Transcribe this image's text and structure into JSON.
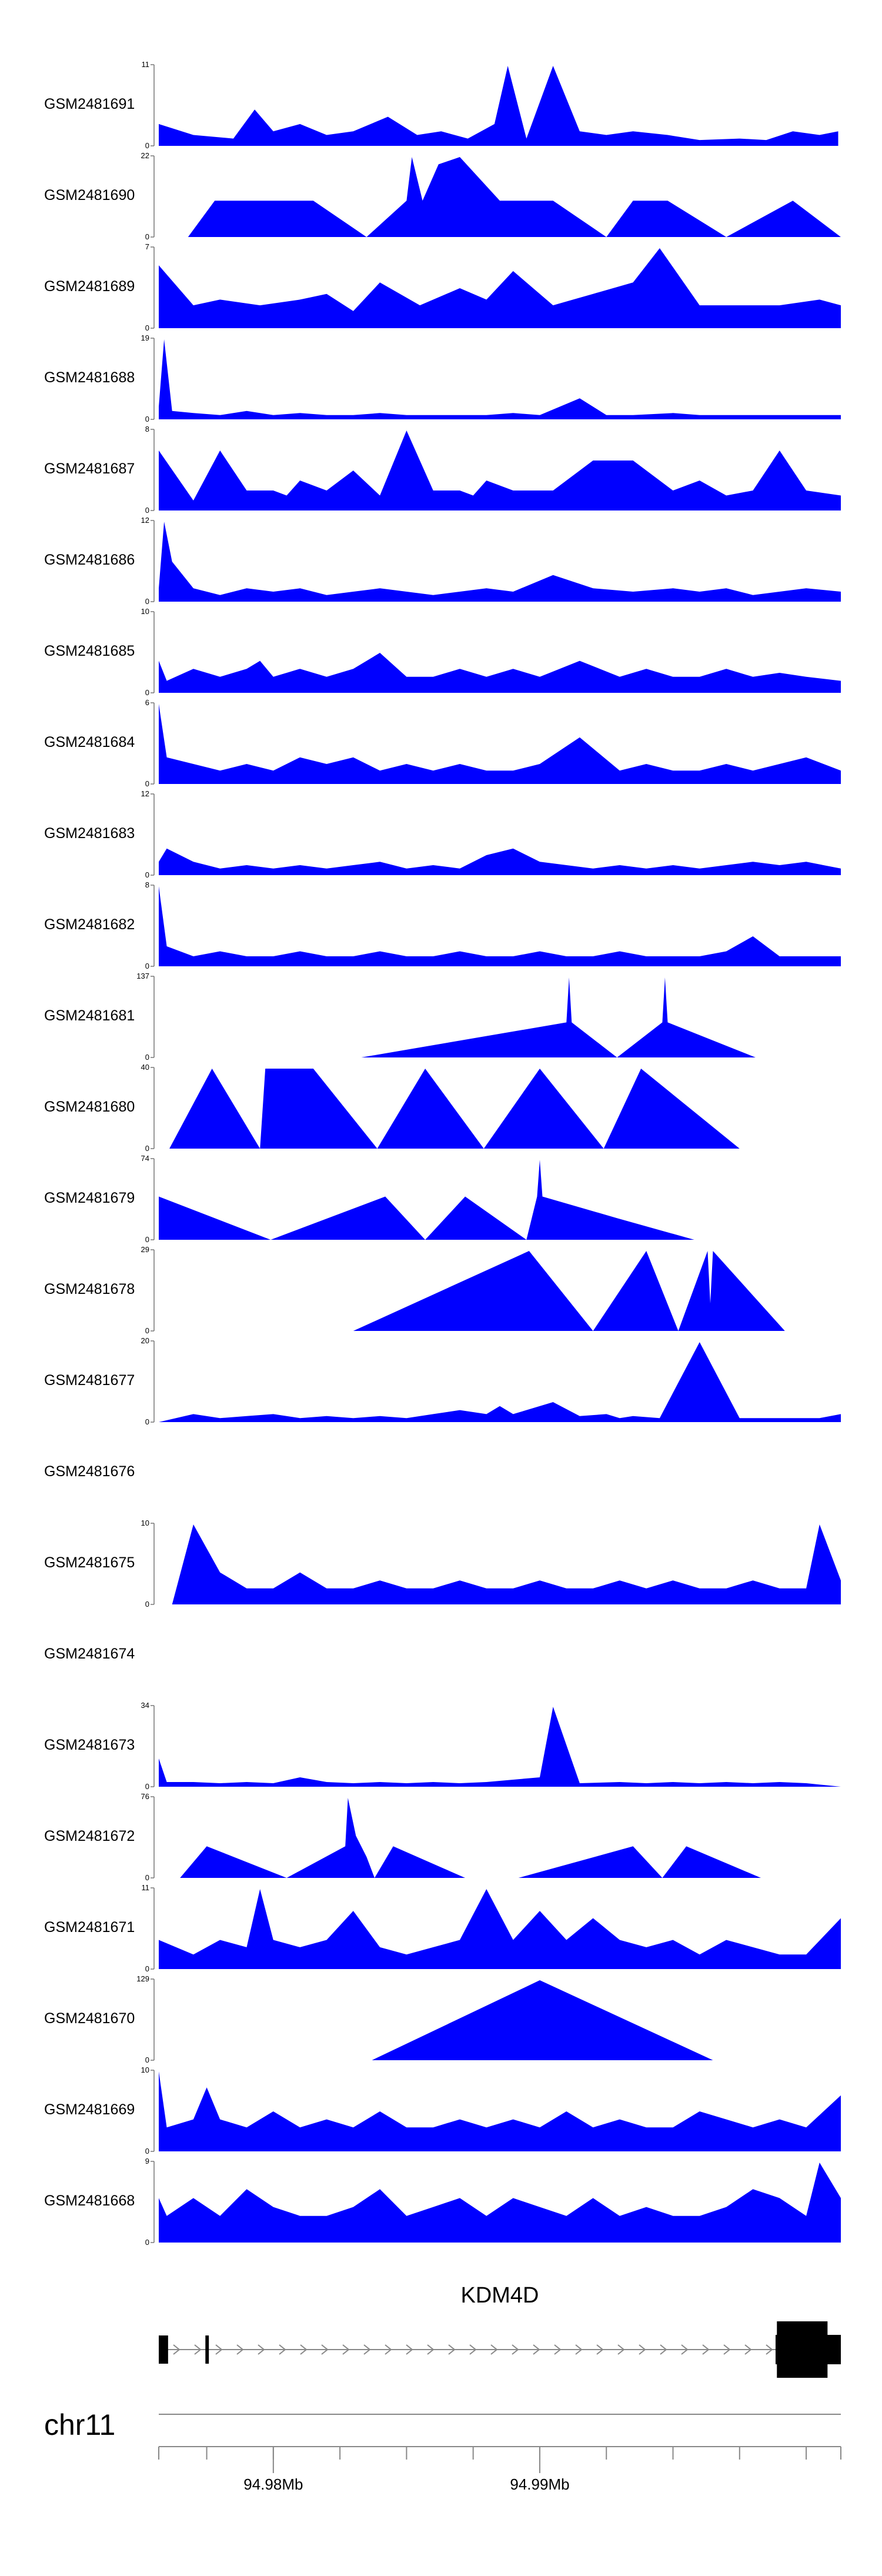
{
  "chart_data": {
    "type": "area",
    "xlim": [
      94.9757,
      95.0013
    ],
    "xlabel": "",
    "ylabel": "",
    "grid": false,
    "color": "#0000ff",
    "tracks": [
      {
        "name": "GSM2481691",
        "ymax": 11,
        "x": [
          94.9757,
          94.977,
          94.9785,
          94.9793,
          94.98,
          94.981,
          94.982,
          94.983,
          94.9843,
          94.9854,
          94.9863,
          94.9873,
          94.9883,
          94.9888,
          94.9895,
          94.9905,
          94.9915,
          94.9925,
          94.9935,
          94.9948,
          94.996,
          94.9975,
          94.9985,
          94.9995,
          95.0005,
          95.0012
        ],
        "y": [
          3,
          1.5,
          1,
          5,
          2,
          3,
          1.5,
          2,
          4,
          1.5,
          2,
          1,
          3,
          11,
          1,
          11,
          2,
          1.5,
          2,
          1.5,
          0.8,
          1,
          0.8,
          2,
          1.5,
          2
        ]
      },
      {
        "name": "GSM2481690",
        "ymax": 22,
        "x": [
          94.9757,
          94.9768,
          94.9778,
          94.9783,
          94.979,
          94.9795,
          94.9803,
          94.9815,
          94.9835,
          94.985,
          94.9852,
          94.9856,
          94.9862,
          94.987,
          94.9885,
          94.9905,
          94.9925,
          94.9935,
          94.9948,
          94.997,
          94.9995,
          95.0013
        ],
        "y": [
          0,
          0,
          10,
          10,
          10,
          10,
          10,
          10,
          0,
          10,
          22,
          10,
          20,
          22,
          10,
          10,
          0,
          10,
          10,
          0,
          10,
          0
        ]
      },
      {
        "name": "GSM2481689",
        "ymax": 7,
        "x": [
          94.9757,
          94.977,
          94.978,
          94.9795,
          94.981,
          94.982,
          94.983,
          94.984,
          94.9855,
          94.987,
          94.988,
          94.989,
          94.9905,
          94.992,
          94.9935,
          94.9945,
          94.996,
          94.9975,
          94.999,
          95.0005,
          95.0013
        ],
        "y": [
          5.5,
          2,
          2.5,
          2,
          2.5,
          3,
          1.5,
          4,
          2,
          3.5,
          2.5,
          5,
          2,
          3,
          4,
          7,
          2,
          2,
          2,
          2.5,
          2
        ]
      },
      {
        "name": "GSM2481688",
        "ymax": 19,
        "x": [
          94.9757,
          94.9759,
          94.9762,
          94.977,
          94.978,
          94.979,
          94.98,
          94.981,
          94.982,
          94.983,
          94.984,
          94.985,
          94.986,
          94.987,
          94.988,
          94.989,
          94.99,
          94.9915,
          94.9925,
          94.9935,
          94.995,
          94.996,
          94.997,
          94.998,
          94.999,
          95.0,
          95.0013
        ],
        "y": [
          3,
          19,
          2,
          1.5,
          1,
          2,
          1,
          1.5,
          1,
          1,
          1.5,
          1,
          1,
          1,
          1,
          1.5,
          1,
          5,
          1,
          1,
          1.5,
          1,
          1,
          1,
          1,
          1,
          1
        ]
      },
      {
        "name": "GSM2481687",
        "ymax": 8,
        "x": [
          94.9757,
          94.977,
          94.978,
          94.979,
          94.98,
          94.9805,
          94.981,
          94.982,
          94.983,
          94.984,
          94.985,
          94.986,
          94.987,
          94.9875,
          94.988,
          94.989,
          94.9905,
          94.992,
          94.9935,
          94.995,
          94.996,
          94.997,
          94.998,
          94.999,
          95.0,
          95.0013
        ],
        "y": [
          6,
          1,
          6,
          2,
          2,
          1.5,
          3,
          2,
          4,
          1.5,
          8,
          2,
          2,
          1.5,
          3,
          2,
          2,
          5,
          5,
          2,
          3,
          1.5,
          2,
          6,
          2,
          1.5
        ]
      },
      {
        "name": "GSM2481686",
        "ymax": 12,
        "x": [
          94.9757,
          94.9759,
          94.9762,
          94.977,
          94.978,
          94.979,
          94.98,
          94.981,
          94.982,
          94.983,
          94.984,
          94.985,
          94.986,
          94.987,
          94.988,
          94.989,
          94.9905,
          94.992,
          94.9935,
          94.995,
          94.996,
          94.997,
          94.998,
          94.999,
          95.0,
          95.0013
        ],
        "y": [
          2,
          12,
          6,
          2,
          1,
          2,
          1.5,
          2,
          1,
          1.5,
          2,
          1.5,
          1,
          1.5,
          2,
          1.5,
          4,
          2,
          1.5,
          2,
          1.5,
          2,
          1,
          1.5,
          2,
          1.5
        ]
      },
      {
        "name": "GSM2481685",
        "ymax": 10,
        "x": [
          94.9757,
          94.976,
          94.977,
          94.978,
          94.979,
          94.9795,
          94.98,
          94.981,
          94.982,
          94.983,
          94.984,
          94.985,
          94.986,
          94.987,
          94.988,
          94.989,
          94.99,
          94.9915,
          94.993,
          94.994,
          94.995,
          94.996,
          94.997,
          94.998,
          94.999,
          95.0,
          95.0013
        ],
        "y": [
          4,
          1.5,
          3,
          2,
          3,
          4,
          2,
          3,
          2,
          3,
          5,
          2,
          2,
          3,
          2,
          3,
          2,
          4,
          2,
          3,
          2,
          2,
          3,
          2,
          2.5,
          2,
          1.5
        ]
      },
      {
        "name": "GSM2481684",
        "ymax": 6,
        "x": [
          94.9757,
          94.976,
          94.977,
          94.978,
          94.979,
          94.98,
          94.981,
          94.982,
          94.983,
          94.984,
          94.985,
          94.986,
          94.987,
          94.988,
          94.989,
          94.99,
          94.9915,
          94.993,
          94.994,
          94.995,
          94.996,
          94.997,
          94.998,
          94.999,
          95.0,
          95.0013
        ],
        "y": [
          6,
          2,
          1.5,
          1,
          1.5,
          1,
          2,
          1.5,
          2,
          1,
          1.5,
          1,
          1.5,
          1,
          1,
          1.5,
          3.5,
          1,
          1.5,
          1,
          1,
          1.5,
          1,
          1.5,
          2,
          1
        ]
      },
      {
        "name": "GSM2481683",
        "ymax": 12,
        "x": [
          94.9757,
          94.976,
          94.977,
          94.978,
          94.979,
          94.98,
          94.981,
          94.982,
          94.983,
          94.984,
          94.985,
          94.986,
          94.987,
          94.988,
          94.989,
          94.99,
          94.991,
          94.992,
          94.993,
          94.994,
          94.995,
          94.996,
          94.997,
          94.998,
          94.999,
          95.0,
          95.0013
        ],
        "y": [
          2,
          4,
          2,
          1,
          1.5,
          1,
          1.5,
          1,
          1.5,
          2,
          1,
          1.5,
          1,
          3,
          4,
          2,
          1.5,
          1,
          1.5,
          1,
          1.5,
          1,
          1.5,
          2,
          1.5,
          2,
          1
        ]
      },
      {
        "name": "GSM2481682",
        "ymax": 8,
        "x": [
          94.9757,
          94.976,
          94.977,
          94.978,
          94.979,
          94.98,
          94.981,
          94.982,
          94.983,
          94.984,
          94.985,
          94.986,
          94.987,
          94.988,
          94.989,
          94.99,
          94.991,
          94.992,
          94.993,
          94.994,
          94.995,
          94.996,
          94.997,
          94.998,
          94.999,
          95.0,
          95.0013
        ],
        "y": [
          8,
          2,
          1,
          1.5,
          1,
          1,
          1.5,
          1,
          1,
          1.5,
          1,
          1,
          1.5,
          1,
          1,
          1.5,
          1,
          1,
          1.5,
          1,
          1,
          1,
          1.5,
          3,
          1,
          1,
          1
        ]
      },
      {
        "name": "GSM2481681",
        "ymax": 137,
        "x": [
          94.9757,
          94.9833,
          94.991,
          94.9911,
          94.9912,
          94.9929,
          94.9946,
          94.9947,
          94.9948,
          94.9981,
          95.0013
        ],
        "y": [
          0,
          0,
          60,
          137,
          60,
          0,
          60,
          137,
          60,
          0,
          0
        ]
      },
      {
        "name": "GSM2481680",
        "ymax": 40,
        "x": [
          94.9757,
          94.9761,
          94.9777,
          94.9795,
          94.9797,
          94.9815,
          94.9839,
          94.9857,
          94.9879,
          94.99,
          94.9924,
          94.9938,
          94.9975,
          95.0013
        ],
        "y": [
          0,
          0,
          40,
          0,
          40,
          40,
          0,
          40,
          0,
          40,
          0,
          40,
          0,
          0
        ]
      },
      {
        "name": "GSM2481679",
        "ymax": 74,
        "x": [
          94.9757,
          94.9799,
          94.9842,
          94.9857,
          94.9872,
          94.9895,
          94.9899,
          94.99,
          94.9901,
          94.9929,
          94.9958,
          95.0013
        ],
        "y": [
          40,
          0,
          40,
          0,
          40,
          0,
          40,
          74,
          40,
          20,
          0,
          0
        ]
      },
      {
        "name": "GSM2481678",
        "ymax": 29,
        "x": [
          94.9757,
          94.983,
          94.9896,
          94.992,
          94.994,
          94.9952,
          94.9963,
          94.9964,
          94.9965,
          94.9992,
          95.0013
        ],
        "y": [
          0,
          0,
          29,
          0,
          29,
          0,
          29,
          10,
          29,
          0,
          0
        ]
      },
      {
        "name": "GSM2481677",
        "ymax": 20,
        "x": [
          94.9757,
          94.977,
          94.978,
          94.979,
          94.98,
          94.981,
          94.982,
          94.983,
          94.984,
          94.985,
          94.986,
          94.987,
          94.988,
          94.9885,
          94.989,
          94.9905,
          94.9915,
          94.9925,
          94.993,
          94.9935,
          94.9945,
          94.996,
          94.9975,
          94.999,
          95.0005,
          95.0013
        ],
        "y": [
          0,
          2,
          1,
          1.5,
          2,
          1,
          1.5,
          1,
          1.5,
          1,
          2,
          3,
          2,
          4,
          2,
          5,
          1.5,
          2,
          1,
          1.5,
          1,
          20,
          1,
          1,
          1,
          2
        ]
      },
      {
        "name": "GSM2481676",
        "ymax": 0,
        "x": [],
        "y": []
      },
      {
        "name": "GSM2481675",
        "ymax": 10,
        "x": [
          94.9757,
          94.9762,
          94.977,
          94.978,
          94.979,
          94.98,
          94.981,
          94.982,
          94.983,
          94.984,
          94.985,
          94.986,
          94.987,
          94.988,
          94.989,
          94.99,
          94.991,
          94.992,
          94.993,
          94.994,
          94.995,
          94.996,
          94.997,
          94.998,
          94.999,
          95.0,
          95.0005,
          95.0013
        ],
        "y": [
          0,
          0,
          10,
          4,
          2,
          2,
          4,
          2,
          2,
          3,
          2,
          2,
          3,
          2,
          2,
          3,
          2,
          2,
          3,
          2,
          3,
          2,
          2,
          3,
          2,
          2,
          10,
          3
        ]
      },
      {
        "name": "GSM2481674",
        "ymax": 0,
        "x": [],
        "y": []
      },
      {
        "name": "GSM2481673",
        "ymax": 34,
        "x": [
          94.9757,
          94.976,
          94.977,
          94.978,
          94.979,
          94.98,
          94.981,
          94.982,
          94.983,
          94.984,
          94.985,
          94.986,
          94.987,
          94.988,
          94.989,
          94.99,
          94.9905,
          94.9915,
          94.993,
          94.994,
          94.995,
          94.996,
          94.997,
          94.998,
          94.999,
          95.0,
          95.0013
        ],
        "y": [
          12,
          2,
          2,
          1.5,
          2,
          1.5,
          4,
          2,
          1.5,
          2,
          1.5,
          2,
          1.5,
          2,
          3,
          4,
          34,
          1.5,
          2,
          1.5,
          2,
          1.5,
          2,
          1.5,
          2,
          1.5,
          0
        ]
      },
      {
        "name": "GSM2481672",
        "ymax": 76,
        "x": [
          94.9757,
          94.9765,
          94.9775,
          94.9805,
          94.9827,
          94.9828,
          94.9831,
          94.9835,
          94.9838,
          94.9845,
          94.9872,
          94.9892,
          94.9935,
          94.9946,
          94.9955,
          94.9983,
          95.0013
        ],
        "y": [
          0,
          0,
          30,
          0,
          30,
          76,
          40,
          20,
          0,
          30,
          0,
          0,
          30,
          0,
          30,
          0,
          0
        ]
      },
      {
        "name": "GSM2481671",
        "ymax": 11,
        "x": [
          94.9757,
          94.977,
          94.978,
          94.979,
          94.9795,
          94.98,
          94.981,
          94.982,
          94.983,
          94.984,
          94.985,
          94.986,
          94.987,
          94.988,
          94.989,
          94.99,
          94.991,
          94.992,
          94.993,
          94.994,
          94.995,
          94.996,
          94.997,
          94.998,
          94.999,
          95.0,
          95.0013
        ],
        "y": [
          4,
          2,
          4,
          3,
          11,
          4,
          3,
          4,
          8,
          3,
          2,
          3,
          4,
          11,
          4,
          8,
          4,
          7,
          4,
          3,
          4,
          2,
          4,
          3,
          2,
          2,
          7
        ]
      },
      {
        "name": "GSM2481670",
        "ymax": 129,
        "x": [
          94.9757,
          94.9837,
          94.99,
          94.9965,
          95.0013
        ],
        "y": [
          0,
          0,
          129,
          0,
          0
        ]
      },
      {
        "name": "GSM2481669",
        "ymax": 10,
        "x": [
          94.9757,
          94.976,
          94.977,
          94.9775,
          94.978,
          94.979,
          94.98,
          94.981,
          94.982,
          94.983,
          94.984,
          94.985,
          94.986,
          94.987,
          94.988,
          94.989,
          94.99,
          94.991,
          94.992,
          94.993,
          94.994,
          94.995,
          94.996,
          94.997,
          94.998,
          94.999,
          95.0,
          95.0013
        ],
        "y": [
          10,
          3,
          4,
          8,
          4,
          3,
          5,
          3,
          4,
          3,
          5,
          3,
          3,
          4,
          3,
          4,
          3,
          5,
          3,
          4,
          3,
          3,
          5,
          4,
          3,
          4,
          3,
          7
        ]
      },
      {
        "name": "GSM2481668",
        "ymax": 9,
        "x": [
          94.9757,
          94.976,
          94.977,
          94.978,
          94.979,
          94.98,
          94.981,
          94.982,
          94.983,
          94.984,
          94.985,
          94.986,
          94.987,
          94.988,
          94.989,
          94.99,
          94.991,
          94.992,
          94.993,
          94.994,
          94.995,
          94.996,
          94.997,
          94.998,
          94.999,
          95.0,
          95.0005,
          95.0013
        ],
        "y": [
          5,
          3,
          5,
          3,
          6,
          4,
          3,
          3,
          4,
          6,
          3,
          4,
          5,
          3,
          5,
          4,
          3,
          5,
          3,
          4,
          3,
          3,
          4,
          6,
          5,
          3,
          9,
          5
        ]
      }
    ],
    "gene": {
      "name": "KDM4D",
      "strand": "+",
      "exons": [
        [
          94.9757,
          94.97605
        ],
        [
          94.97745,
          94.97758
        ],
        [
          94.9989,
          95.0008
        ]
      ],
      "end_block_wide": [
        94.99885,
        95.0013
      ],
      "line": [
        94.9757,
        95.0013
      ]
    },
    "axis": {
      "chrom": "chr11",
      "ticks": [
        94.9757,
        94.9775,
        94.98,
        94.9825,
        94.985,
        94.9875,
        94.99,
        94.9925,
        94.995,
        94.9975,
        95.0,
        95.0013
      ],
      "labels": [
        {
          "x": 94.98,
          "text": "94.98Mb"
        },
        {
          "x": 94.99,
          "text": "94.99Mb"
        }
      ]
    }
  }
}
